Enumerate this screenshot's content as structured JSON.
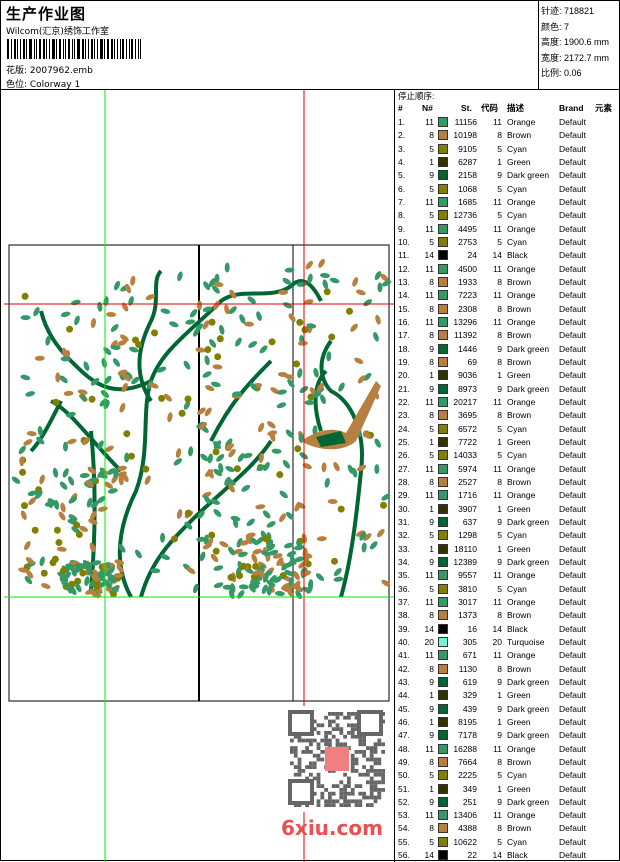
{
  "header": {
    "title": "生产作业图",
    "company": "Wilcom(汇京)绣饰工作室",
    "design_label": "花版: 2007962.emb",
    "colorway_label": "色位: Colorway 1"
  },
  "info": {
    "stitches": "针迹: 718821",
    "colors": "颜色: 7",
    "height": "高度: 1900.6 mm",
    "width": "宽度: 2172.7 mm",
    "scale": "比例: 0.06"
  },
  "table": {
    "caption": "停止顺序:",
    "headers": {
      "idx": "#",
      "no": "N#",
      "st": "St.",
      "code": "代码",
      "desc": "描述",
      "brand": "Brand",
      "elem": "元素"
    },
    "swatch_colors": {
      "Orange": "#339966",
      "Brown": "#b8803f",
      "Cyan": "#808000",
      "Green": "#333300",
      "Dark green": "#006633",
      "Black": "#000000",
      "Turquoise": "#66ffcc"
    },
    "rows": [
      {
        "idx": "1.",
        "no": "11",
        "st": "11156",
        "code": "11",
        "desc": "Orange",
        "brand": "Default"
      },
      {
        "idx": "2.",
        "no": "8",
        "st": "10198",
        "code": "8",
        "desc": "Brown",
        "brand": "Default"
      },
      {
        "idx": "3.",
        "no": "5",
        "st": "9105",
        "code": "5",
        "desc": "Cyan",
        "brand": "Default"
      },
      {
        "idx": "4.",
        "no": "1",
        "st": "6287",
        "code": "1",
        "desc": "Green",
        "brand": "Default"
      },
      {
        "idx": "5.",
        "no": "9",
        "st": "2158",
        "code": "9",
        "desc": "Dark green",
        "brand": "Default"
      },
      {
        "idx": "6.",
        "no": "5",
        "st": "1068",
        "code": "5",
        "desc": "Cyan",
        "brand": "Default"
      },
      {
        "idx": "7.",
        "no": "11",
        "st": "1685",
        "code": "11",
        "desc": "Orange",
        "brand": "Default"
      },
      {
        "idx": "8.",
        "no": "5",
        "st": "12736",
        "code": "5",
        "desc": "Cyan",
        "brand": "Default"
      },
      {
        "idx": "9.",
        "no": "11",
        "st": "4495",
        "code": "11",
        "desc": "Orange",
        "brand": "Default"
      },
      {
        "idx": "10.",
        "no": "5",
        "st": "2753",
        "code": "5",
        "desc": "Cyan",
        "brand": "Default"
      },
      {
        "idx": "11.",
        "no": "14",
        "st": "24",
        "code": "14",
        "desc": "Black",
        "brand": "Default"
      },
      {
        "idx": "12.",
        "no": "11",
        "st": "4500",
        "code": "11",
        "desc": "Orange",
        "brand": "Default"
      },
      {
        "idx": "13.",
        "no": "8",
        "st": "1933",
        "code": "8",
        "desc": "Brown",
        "brand": "Default"
      },
      {
        "idx": "14.",
        "no": "11",
        "st": "7223",
        "code": "11",
        "desc": "Orange",
        "brand": "Default"
      },
      {
        "idx": "15.",
        "no": "8",
        "st": "2308",
        "code": "8",
        "desc": "Brown",
        "brand": "Default"
      },
      {
        "idx": "16.",
        "no": "11",
        "st": "13296",
        "code": "11",
        "desc": "Orange",
        "brand": "Default"
      },
      {
        "idx": "17.",
        "no": "8",
        "st": "11392",
        "code": "8",
        "desc": "Brown",
        "brand": "Default"
      },
      {
        "idx": "18.",
        "no": "9",
        "st": "1446",
        "code": "9",
        "desc": "Dark green",
        "brand": "Default"
      },
      {
        "idx": "19.",
        "no": "8",
        "st": "69",
        "code": "8",
        "desc": "Brown",
        "brand": "Default"
      },
      {
        "idx": "20.",
        "no": "1",
        "st": "9036",
        "code": "1",
        "desc": "Green",
        "brand": "Default"
      },
      {
        "idx": "21.",
        "no": "9",
        "st": "8973",
        "code": "9",
        "desc": "Dark green",
        "brand": "Default"
      },
      {
        "idx": "22.",
        "no": "11",
        "st": "20217",
        "code": "11",
        "desc": "Orange",
        "brand": "Default"
      },
      {
        "idx": "23.",
        "no": "8",
        "st": "3695",
        "code": "8",
        "desc": "Brown",
        "brand": "Default"
      },
      {
        "idx": "24.",
        "no": "5",
        "st": "6572",
        "code": "5",
        "desc": "Cyan",
        "brand": "Default"
      },
      {
        "idx": "25.",
        "no": "1",
        "st": "7722",
        "code": "1",
        "desc": "Green",
        "brand": "Default"
      },
      {
        "idx": "26.",
        "no": "5",
        "st": "14033",
        "code": "5",
        "desc": "Cyan",
        "brand": "Default"
      },
      {
        "idx": "27.",
        "no": "11",
        "st": "5974",
        "code": "11",
        "desc": "Orange",
        "brand": "Default"
      },
      {
        "idx": "28.",
        "no": "8",
        "st": "2527",
        "code": "8",
        "desc": "Brown",
        "brand": "Default"
      },
      {
        "idx": "29.",
        "no": "11",
        "st": "1716",
        "code": "11",
        "desc": "Orange",
        "brand": "Default"
      },
      {
        "idx": "30.",
        "no": "1",
        "st": "3907",
        "code": "1",
        "desc": "Green",
        "brand": "Default"
      },
      {
        "idx": "31.",
        "no": "9",
        "st": "637",
        "code": "9",
        "desc": "Dark green",
        "brand": "Default"
      },
      {
        "idx": "32.",
        "no": "5",
        "st": "1298",
        "code": "5",
        "desc": "Cyan",
        "brand": "Default"
      },
      {
        "idx": "33.",
        "no": "1",
        "st": "18110",
        "code": "1",
        "desc": "Green",
        "brand": "Default"
      },
      {
        "idx": "34.",
        "no": "9",
        "st": "12389",
        "code": "9",
        "desc": "Dark green",
        "brand": "Default"
      },
      {
        "idx": "35.",
        "no": "11",
        "st": "9557",
        "code": "11",
        "desc": "Orange",
        "brand": "Default"
      },
      {
        "idx": "36.",
        "no": "5",
        "st": "3810",
        "code": "5",
        "desc": "Cyan",
        "brand": "Default"
      },
      {
        "idx": "37.",
        "no": "11",
        "st": "3017",
        "code": "11",
        "desc": "Orange",
        "brand": "Default"
      },
      {
        "idx": "38.",
        "no": "8",
        "st": "1373",
        "code": "8",
        "desc": "Brown",
        "brand": "Default"
      },
      {
        "idx": "39.",
        "no": "14",
        "st": "16",
        "code": "14",
        "desc": "Black",
        "brand": "Default"
      },
      {
        "idx": "40.",
        "no": "20",
        "st": "305",
        "code": "20",
        "desc": "Turquoise",
        "brand": "Default"
      },
      {
        "idx": "41.",
        "no": "11",
        "st": "671",
        "code": "11",
        "desc": "Orange",
        "brand": "Default"
      },
      {
        "idx": "42.",
        "no": "8",
        "st": "1130",
        "code": "8",
        "desc": "Brown",
        "brand": "Default"
      },
      {
        "idx": "43.",
        "no": "9",
        "st": "619",
        "code": "9",
        "desc": "Dark green",
        "brand": "Default"
      },
      {
        "idx": "44.",
        "no": "1",
        "st": "329",
        "code": "1",
        "desc": "Green",
        "brand": "Default"
      },
      {
        "idx": "45.",
        "no": "9",
        "st": "439",
        "code": "9",
        "desc": "Dark green",
        "brand": "Default"
      },
      {
        "idx": "46.",
        "no": "1",
        "st": "8195",
        "code": "1",
        "desc": "Green",
        "brand": "Default"
      },
      {
        "idx": "47.",
        "no": "9",
        "st": "7178",
        "code": "9",
        "desc": "Dark green",
        "brand": "Default"
      },
      {
        "idx": "48.",
        "no": "11",
        "st": "16288",
        "code": "11",
        "desc": "Orange",
        "brand": "Default"
      },
      {
        "idx": "49.",
        "no": "8",
        "st": "7664",
        "code": "8",
        "desc": "Brown",
        "brand": "Default"
      },
      {
        "idx": "50.",
        "no": "5",
        "st": "2225",
        "code": "5",
        "desc": "Cyan",
        "brand": "Default"
      },
      {
        "idx": "51.",
        "no": "1",
        "st": "349",
        "code": "1",
        "desc": "Green",
        "brand": "Default"
      },
      {
        "idx": "52.",
        "no": "9",
        "st": "251",
        "code": "9",
        "desc": "Dark green",
        "brand": "Default"
      },
      {
        "idx": "53.",
        "no": "11",
        "st": "13406",
        "code": "11",
        "desc": "Orange",
        "brand": "Default"
      },
      {
        "idx": "54.",
        "no": "8",
        "st": "4388",
        "code": "8",
        "desc": "Brown",
        "brand": "Default"
      },
      {
        "idx": "55.",
        "no": "5",
        "st": "10622",
        "code": "5",
        "desc": "Cyan",
        "brand": "Default"
      },
      {
        "idx": "56.",
        "no": "14",
        "st": "22",
        "code": "14",
        "desc": "Black",
        "brand": "Default"
      }
    ]
  },
  "watermark": {
    "text": "6xiu.com"
  },
  "guide_colors": {
    "green": "#00ee00",
    "red": "#dd0000"
  }
}
